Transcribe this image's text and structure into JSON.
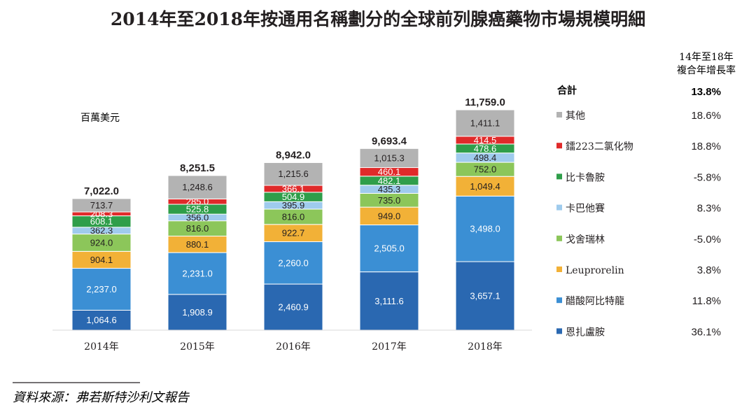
{
  "chart_data": {
    "type": "bar",
    "stacked": true,
    "title": "2014年至2018年按通用名稱劃分的全球前列腺癌藥物市場規模明細",
    "unit_label": "百萬美元",
    "categories": [
      "2014年",
      "2015年",
      "2016年",
      "2017年",
      "2018年"
    ],
    "totals": [
      "7,022.0",
      "8,251.5",
      "8,942.0",
      "9,693.4",
      "11,759.0"
    ],
    "series": [
      {
        "name": "恩扎盧胺",
        "color": "#2a68b1",
        "values": [
          1064.6,
          1908.9,
          2460.9,
          3111.6,
          3657.1
        ],
        "cagr": "36.1%"
      },
      {
        "name": "醋酸阿比特龍",
        "color": "#3b8fd4",
        "values": [
          2237.0,
          2231.0,
          2260.0,
          2505.0,
          3498.0
        ],
        "cagr": "11.8%"
      },
      {
        "name": "Leuprorelin",
        "color": "#f2b137",
        "values": [
          904.1,
          880.1,
          922.7,
          949.0,
          1049.4
        ],
        "cagr": "3.8%"
      },
      {
        "name": "戈舍瑞林",
        "color": "#8cc65a",
        "values": [
          924.0,
          816.0,
          816.0,
          735.0,
          752.0
        ],
        "cagr": "-5.0%"
      },
      {
        "name": "卡巴他賽",
        "color": "#9fcbed",
        "values": [
          362.3,
          356.0,
          395.9,
          435.3,
          498.4
        ],
        "cagr": "8.3%"
      },
      {
        "name": "比卡魯胺",
        "color": "#2f9e4a",
        "values": [
          608.1,
          525.8,
          504.9,
          482.1,
          478.6
        ],
        "cagr": "-5.8%"
      },
      {
        "name": "鐳223二氯化物",
        "color": "#e02a2a",
        "values": [
          208.3,
          285.0,
          366.1,
          460.1,
          414.5
        ],
        "cagr": "18.8%"
      },
      {
        "name": "其他",
        "color": "#b3b3b3",
        "values": [
          713.7,
          1248.6,
          1215.6,
          1015.3,
          1411.1
        ],
        "cagr": "18.6%"
      }
    ],
    "ylim": [
      0,
      11759.0
    ],
    "grid": false,
    "legend_position": "right"
  },
  "legend": {
    "cagr_header_line1": "14年至18年",
    "cagr_header_line2": "複合年增長率",
    "total_label": "合計",
    "total_cagr": "13.8%"
  },
  "source": "資料來源：弗若斯特沙利文報告"
}
